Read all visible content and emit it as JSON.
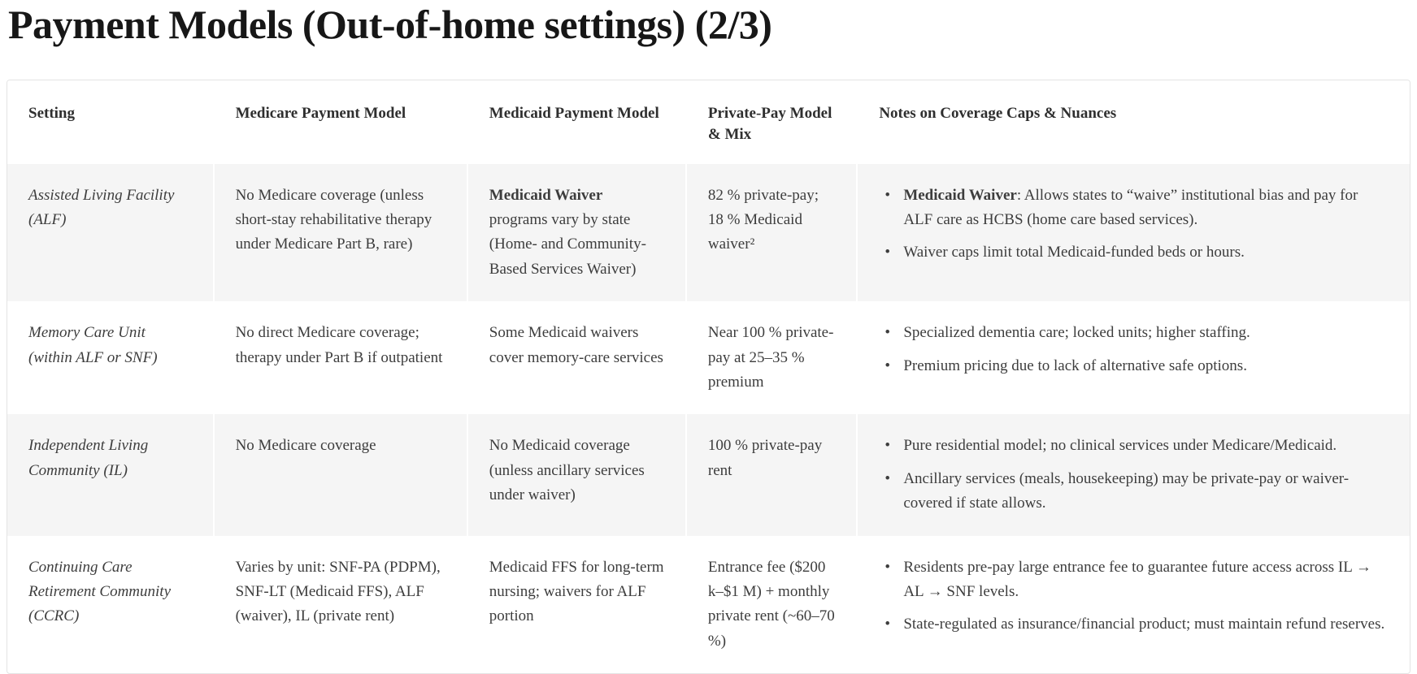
{
  "page": {
    "title": "Payment Models (Out-of-home settings) (2/3)"
  },
  "colors": {
    "row_shade": "#f5f5f5",
    "table_border": "#e4e4e4",
    "body_text": "#3d3d3d",
    "title_text": "#171717"
  },
  "table": {
    "headers": [
      "Setting",
      "Medicare Payment Model",
      "Medicaid Payment Model",
      "Private-Pay Model & Mix",
      "Notes on Coverage Caps & Nuances"
    ],
    "rows": [
      {
        "setting": "Assisted Living Facility (ALF)",
        "medicare": {
          "bold": "",
          "text": "No Medicare coverage (unless short-stay rehabilitative therapy under Medicare Part B, rare)"
        },
        "medicaid": {
          "bold": "Medicaid Waiver",
          "text": " programs vary by state (Home- and Community-Based Services Waiver)"
        },
        "private_pay": "82 % private-pay; 18 % Medicaid waiver²",
        "notes": [
          {
            "bold": "Medicaid Waiver",
            "text": ": Allows states to “waive” institutional bias and pay for ALF care as HCBS (home care based services)."
          },
          {
            "bold": "",
            "text": "Waiver caps limit total Medicaid-funded beds or hours."
          }
        ]
      },
      {
        "setting": "Memory Care Unit (within ALF or SNF)",
        "medicare": {
          "bold": "",
          "text": "No direct Medicare coverage; therapy under Part B if outpatient"
        },
        "medicaid": {
          "bold": "",
          "text": "Some Medicaid waivers cover memory-care services"
        },
        "private_pay": "Near 100 % private-pay at 25–35 % premium",
        "notes": [
          {
            "bold": "",
            "text": "Specialized dementia care; locked units; higher staffing."
          },
          {
            "bold": "",
            "text": "Premium pricing due to lack of alternative safe options."
          }
        ]
      },
      {
        "setting": "Independent Living Community (IL)",
        "medicare": {
          "bold": "",
          "text": "No Medicare coverage"
        },
        "medicaid": {
          "bold": "",
          "text": "No Medicaid coverage (unless ancillary services under waiver)"
        },
        "private_pay": "100 % private-pay rent",
        "notes": [
          {
            "bold": "",
            "text": "Pure residential model; no clinical services under Medicare/Medicaid."
          },
          {
            "bold": "",
            "text": "Ancillary services (meals, housekeeping) may be private-pay or waiver-covered if state allows."
          }
        ]
      },
      {
        "setting": "Continuing Care Retirement Community (CCRC)",
        "medicare": {
          "bold": "",
          "text": "Varies by unit: SNF-PA (PDPM), SNF-LT (Medicaid FFS), ALF (waiver), IL (private rent)"
        },
        "medicaid": {
          "bold": "",
          "text": "Medicaid FFS for long-term nursing; waivers for ALF portion"
        },
        "private_pay": "Entrance fee ($200 k–$1 M) + monthly private rent (~60–70 %)",
        "notes": [
          {
            "bold": "",
            "text": "Residents pre-pay large entrance fee to guarantee future access across IL → AL → SNF levels."
          },
          {
            "bold": "",
            "text": "State-regulated as insurance/financial product; must maintain refund reserves."
          }
        ]
      }
    ]
  }
}
